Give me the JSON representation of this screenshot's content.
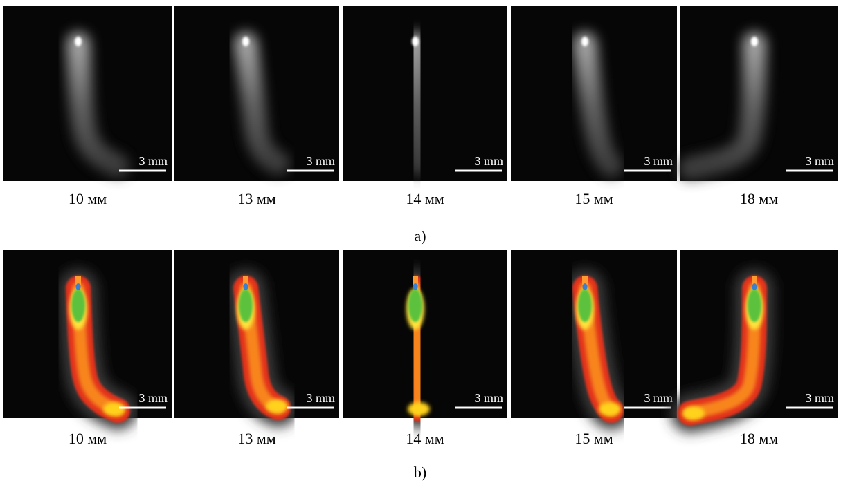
{
  "panels": {
    "a": {
      "label": "a)",
      "images": [
        {
          "scale_bar": "3 mm",
          "caption": "10 мм"
        },
        {
          "scale_bar": "3 mm",
          "caption": "13 мм"
        },
        {
          "scale_bar": "3 mm",
          "caption": "14 мм"
        },
        {
          "scale_bar": "3 mm",
          "caption": "15 мм"
        },
        {
          "scale_bar": "3 mm",
          "caption": "18 мм"
        }
      ]
    },
    "b": {
      "label": "b)",
      "images": [
        {
          "scale_bar": "3 mm",
          "caption": "10 мм"
        },
        {
          "scale_bar": "3 mm",
          "caption": "13 мм"
        },
        {
          "scale_bar": "3 mm",
          "caption": "14 мм"
        },
        {
          "scale_bar": "3 mm",
          "caption": "15 мм"
        },
        {
          "scale_bar": "3 mm",
          "caption": "18 мм"
        }
      ]
    }
  }
}
